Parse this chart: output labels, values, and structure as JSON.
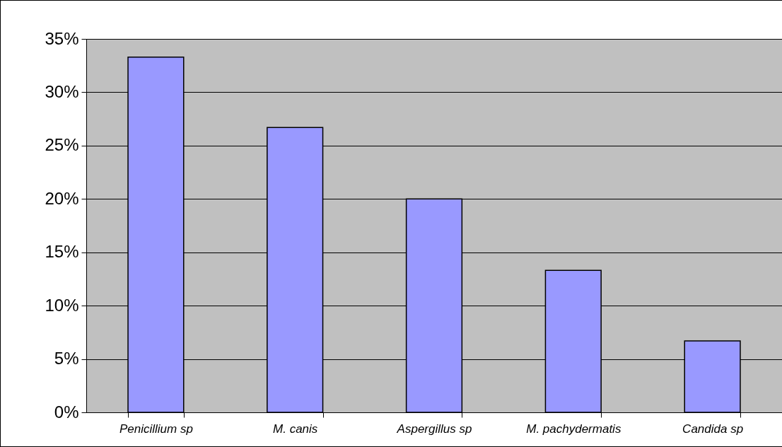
{
  "chart_data": {
    "type": "bar",
    "categories": [
      "Penicillium sp",
      "M. canis",
      "Aspergillus sp",
      "M. pachydermatis",
      "Candida sp"
    ],
    "values": [
      33.3,
      26.7,
      20,
      13.3,
      6.7
    ],
    "color": "#9999ff",
    "ylim": [
      0,
      35
    ],
    "yticks": [
      {
        "value": 0,
        "label": "0%"
      },
      {
        "value": 5,
        "label": "5%"
      },
      {
        "value": 10,
        "label": "10%"
      },
      {
        "value": 15,
        "label": "15%"
      },
      {
        "value": 20,
        "label": "20%"
      },
      {
        "value": 25,
        "label": "25%"
      },
      {
        "value": 30,
        "label": "30%"
      },
      {
        "value": 35,
        "label": "35%"
      }
    ],
    "grid": "y"
  }
}
